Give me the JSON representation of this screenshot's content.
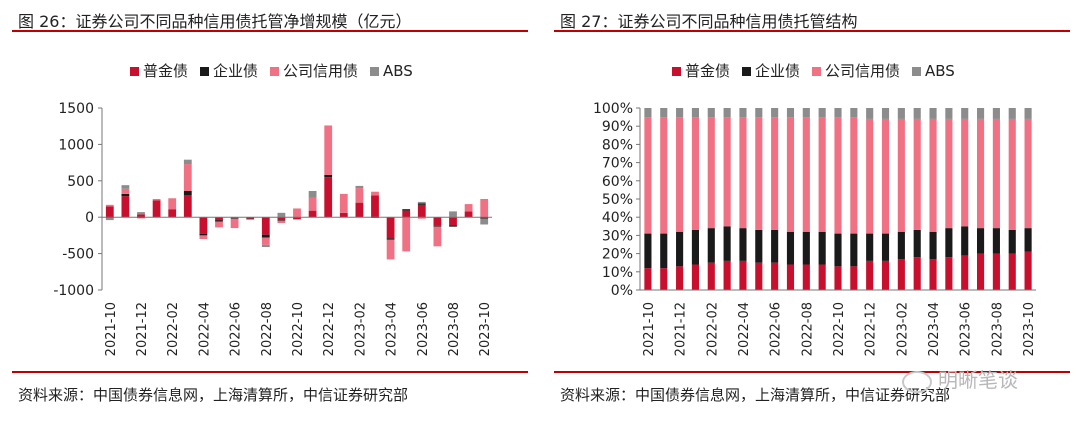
{
  "charts": [
    {
      "fig_title": "图 26：证券公司不同品种信用债托管净增规模（亿元）",
      "source": "资料来源：中国债券信息网，上海清算所，中信证券研究部"
    },
    {
      "fig_title": "图 27：证券公司不同品种信用债托管结构",
      "source": "资料来源：中国债券信息网，上海清算所，中信证券研究部"
    }
  ],
  "watermark": "明晰笔谈",
  "colors": {
    "red": "#c8102e",
    "black": "#1a1a1a",
    "pink": "#f07183",
    "gray": "#8c8c8c",
    "rule": "#c00000"
  },
  "chart_data": [
    {
      "type": "bar",
      "stacked": true,
      "title": "图 26：证券公司不同品种信用债托管净增规模（亿元）",
      "categories": [
        "2021-10",
        "2021-11",
        "2021-12",
        "2022-01",
        "2022-02",
        "2022-03",
        "2022-04",
        "2022-05",
        "2022-06",
        "2022-07",
        "2022-08",
        "2022-09",
        "2022-10",
        "2022-11",
        "2022-12",
        "2023-01",
        "2023-02",
        "2023-03",
        "2023-04",
        "2023-05",
        "2023-06",
        "2023-07",
        "2023-08",
        "2023-09",
        "2023-10"
      ],
      "tick_labels": [
        "2021-10",
        "2021-12",
        "2022-02",
        "2022-04",
        "2022-06",
        "2022-08",
        "2022-10",
        "2022-12",
        "2023-02",
        "2023-04",
        "2023-06",
        "2023-08",
        "2023-10"
      ],
      "ylim": [
        -1000,
        1500
      ],
      "yticks": [
        -1000,
        -500,
        0,
        500,
        1000,
        1500
      ],
      "legend_position": "top-center",
      "series": [
        {
          "name": "普金债",
          "color": "#c8102e",
          "values": [
            150,
            290,
            40,
            230,
            110,
            300,
            -230,
            -40,
            -10,
            -20,
            -240,
            -40,
            -30,
            90,
            550,
            60,
            200,
            300,
            -290,
            90,
            170,
            -120,
            -110,
            80,
            0
          ]
        },
        {
          "name": "企业债",
          "color": "#1a1a1a",
          "values": [
            -10,
            30,
            -10,
            0,
            0,
            60,
            -20,
            -20,
            -10,
            -10,
            -40,
            -10,
            0,
            0,
            30,
            0,
            0,
            -10,
            -20,
            20,
            20,
            -10,
            -20,
            0,
            -20
          ]
        },
        {
          "name": "公司信用债",
          "color": "#f07183",
          "values": [
            20,
            70,
            -5,
            20,
            150,
            370,
            -50,
            -80,
            -130,
            0,
            -100,
            -30,
            120,
            180,
            680,
            260,
            200,
            50,
            -270,
            -470,
            -20,
            -270,
            0,
            100,
            250
          ]
        },
        {
          "name": "ABS",
          "color": "#8c8c8c",
          "values": [
            -30,
            50,
            30,
            0,
            0,
            60,
            0,
            0,
            0,
            0,
            -30,
            60,
            0,
            90,
            0,
            0,
            30,
            0,
            0,
            0,
            20,
            0,
            80,
            0,
            -80
          ]
        }
      ]
    },
    {
      "type": "bar",
      "stacked": true,
      "percent": true,
      "title": "图 27：证券公司不同品种信用债托管结构",
      "categories": [
        "2021-10",
        "2021-11",
        "2021-12",
        "2022-01",
        "2022-02",
        "2022-03",
        "2022-04",
        "2022-05",
        "2022-06",
        "2022-07",
        "2022-08",
        "2022-09",
        "2022-10",
        "2022-11",
        "2022-12",
        "2023-01",
        "2023-02",
        "2023-03",
        "2023-04",
        "2023-05",
        "2023-06",
        "2023-07",
        "2023-08",
        "2023-09",
        "2023-10"
      ],
      "tick_labels": [
        "2021-10",
        "2021-12",
        "2022-02",
        "2022-04",
        "2022-06",
        "2022-08",
        "2022-10",
        "2022-12",
        "2023-02",
        "2023-04",
        "2023-06",
        "2023-08",
        "2023-10"
      ],
      "ylim": [
        0,
        100
      ],
      "yticks": [
        "0%",
        "10%",
        "20%",
        "30%",
        "40%",
        "50%",
        "60%",
        "70%",
        "80%",
        "90%",
        "100%"
      ],
      "legend_position": "top-center",
      "series": [
        {
          "name": "普金债",
          "color": "#c8102e",
          "values": [
            12,
            12,
            13,
            14,
            15,
            16,
            16,
            15,
            15,
            14,
            14,
            14,
            13,
            13,
            16,
            16,
            17,
            18,
            17,
            18,
            19,
            20,
            20,
            20,
            21
          ]
        },
        {
          "name": "企业债",
          "color": "#1a1a1a",
          "values": [
            19,
            19,
            19,
            19,
            19,
            19,
            18,
            18,
            18,
            18,
            18,
            18,
            18,
            18,
            15,
            15,
            15,
            15,
            15,
            16,
            16,
            14,
            14,
            13,
            13
          ]
        },
        {
          "name": "公司信用债",
          "color": "#f07183",
          "values": [
            64,
            64,
            63,
            62,
            61,
            60,
            61,
            62,
            62,
            63,
            63,
            63,
            64,
            64,
            63,
            63,
            62,
            61,
            62,
            60,
            59,
            60,
            60,
            61,
            60
          ]
        },
        {
          "name": "ABS",
          "color": "#8c8c8c",
          "values": [
            5,
            5,
            5,
            5,
            5,
            5,
            5,
            5,
            5,
            5,
            5,
            5,
            5,
            5,
            6,
            6,
            6,
            6,
            6,
            6,
            6,
            6,
            6,
            6,
            6
          ]
        }
      ]
    }
  ]
}
